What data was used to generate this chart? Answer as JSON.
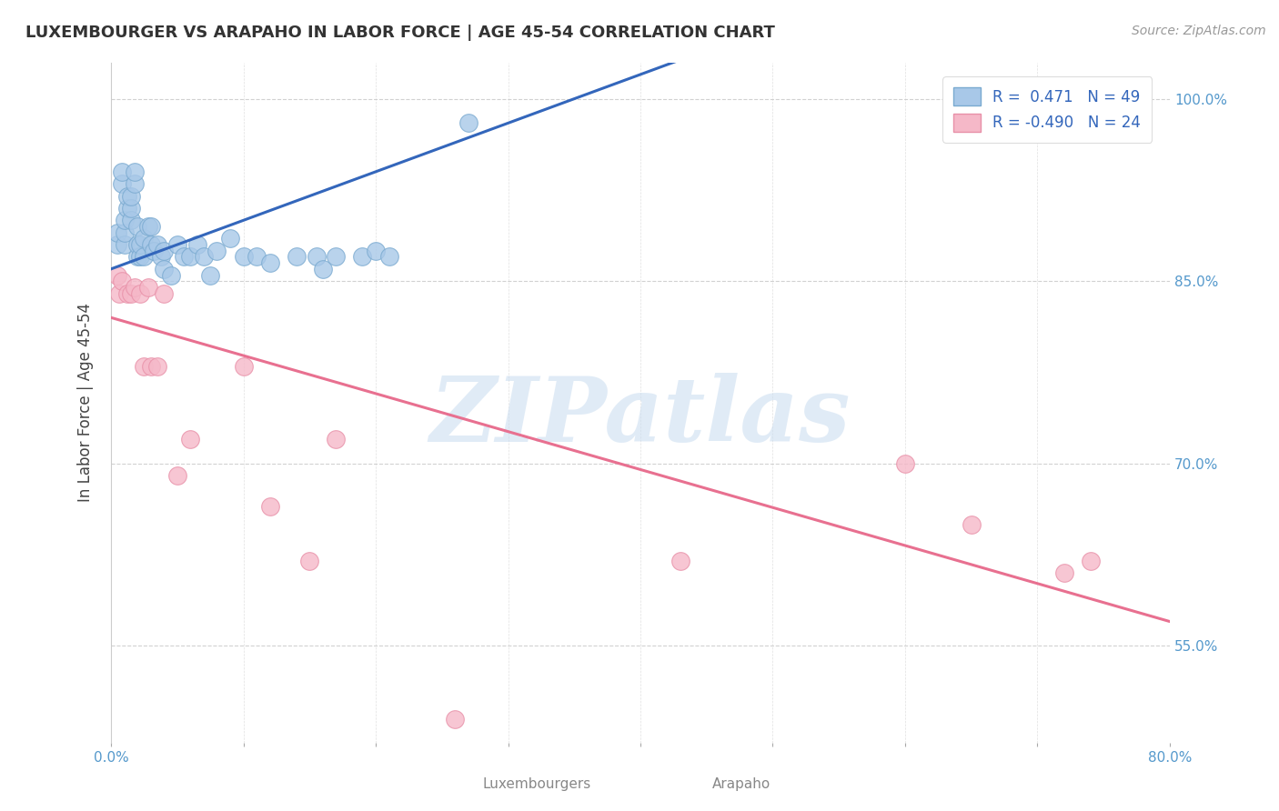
{
  "title": "LUXEMBOURGER VS ARAPAHO IN LABOR FORCE | AGE 45-54 CORRELATION CHART",
  "source": "Source: ZipAtlas.com",
  "xlabel_luxembourgers": "Luxembourgers",
  "xlabel_arapaho": "Arapaho",
  "ylabel": "In Labor Force | Age 45-54",
  "xlim": [
    0.0,
    0.8
  ],
  "ylim": [
    0.47,
    1.03
  ],
  "right_yticks": [
    0.55,
    0.7,
    0.85,
    1.0
  ],
  "right_yticklabels": [
    "55.0%",
    "70.0%",
    "85.0%",
    "100.0%"
  ],
  "R_luxembourgers": 0.471,
  "N_luxembourgers": 49,
  "R_arapaho": -0.49,
  "N_arapaho": 24,
  "blue_color": "#A8C8E8",
  "blue_edge": "#7AAAD0",
  "pink_color": "#F5B8C8",
  "pink_edge": "#E890A8",
  "line_blue": "#3366BB",
  "line_pink": "#E87090",
  "watermark": "ZIPatlas",
  "watermark_color": "#C8DCF0",
  "blue_scatter_x": [
    0.005,
    0.005,
    0.008,
    0.008,
    0.01,
    0.01,
    0.01,
    0.012,
    0.012,
    0.015,
    0.015,
    0.015,
    0.018,
    0.018,
    0.02,
    0.02,
    0.02,
    0.022,
    0.022,
    0.025,
    0.025,
    0.028,
    0.03,
    0.03,
    0.032,
    0.035,
    0.038,
    0.04,
    0.04,
    0.045,
    0.05,
    0.055,
    0.06,
    0.065,
    0.07,
    0.075,
    0.08,
    0.09,
    0.1,
    0.11,
    0.12,
    0.14,
    0.155,
    0.16,
    0.17,
    0.19,
    0.2,
    0.21,
    0.27
  ],
  "blue_scatter_y": [
    0.88,
    0.89,
    0.93,
    0.94,
    0.88,
    0.89,
    0.9,
    0.91,
    0.92,
    0.9,
    0.91,
    0.92,
    0.93,
    0.94,
    0.87,
    0.88,
    0.895,
    0.87,
    0.88,
    0.87,
    0.885,
    0.895,
    0.88,
    0.895,
    0.875,
    0.88,
    0.87,
    0.86,
    0.875,
    0.855,
    0.88,
    0.87,
    0.87,
    0.88,
    0.87,
    0.855,
    0.875,
    0.885,
    0.87,
    0.87,
    0.865,
    0.87,
    0.87,
    0.86,
    0.87,
    0.87,
    0.875,
    0.87,
    0.98
  ],
  "pink_scatter_x": [
    0.005,
    0.006,
    0.008,
    0.012,
    0.015,
    0.018,
    0.022,
    0.025,
    0.028,
    0.03,
    0.035,
    0.04,
    0.05,
    0.06,
    0.1,
    0.12,
    0.15,
    0.17,
    0.26,
    0.43,
    0.6,
    0.65,
    0.72,
    0.74
  ],
  "pink_scatter_y": [
    0.855,
    0.84,
    0.85,
    0.84,
    0.84,
    0.845,
    0.84,
    0.78,
    0.845,
    0.78,
    0.78,
    0.84,
    0.69,
    0.72,
    0.78,
    0.665,
    0.62,
    0.72,
    0.49,
    0.62,
    0.7,
    0.65,
    0.61,
    0.62
  ]
}
